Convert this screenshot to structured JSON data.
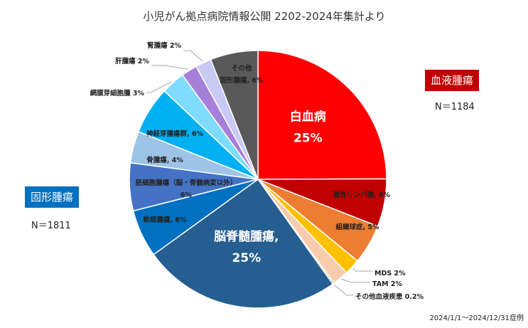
{
  "chart_data": {
    "type": "pie",
    "title": "小児がん拠点病院情報公開 2202-2024年集計より",
    "slices": [
      {
        "label": "白血病",
        "value": 25,
        "value_label": "25%",
        "group": "blood",
        "color": "#ff0000"
      },
      {
        "label": "悪性リンパ腫",
        "value": 6,
        "value_label": "6%",
        "group": "blood",
        "color": "#c00000"
      },
      {
        "label": "組織球症",
        "value": 5,
        "value_label": "5%",
        "group": "blood",
        "color": "#ed7d31"
      },
      {
        "label": "MDS",
        "value": 2,
        "value_label": "2%",
        "group": "blood",
        "color": "#ffc000"
      },
      {
        "label": "TAM",
        "value": 2,
        "value_label": "2%",
        "group": "blood",
        "color": "#f8cbad"
      },
      {
        "label": "その他血液疾患",
        "value": 0.2,
        "value_label": "0.2%",
        "group": "blood",
        "color": "#70ad47"
      },
      {
        "label": "脳脊髄腫瘍,",
        "value": 25,
        "value_label": "25%",
        "group": "solid",
        "color": "#255e91"
      },
      {
        "label": "軟部腫瘍,",
        "value": 6,
        "value_label": "6%",
        "group": "solid",
        "color": "#0070c0"
      },
      {
        "label": "胚細胞腫瘍（脳・脊髄病変以外）",
        "value": 6,
        "value_label": "6%",
        "group": "solid",
        "color": "#4472c4"
      },
      {
        "label": "骨腫瘍,",
        "value": 4,
        "value_label": "4%",
        "group": "solid",
        "color": "#9dc3e6"
      },
      {
        "label": "神経芽腫瘍群,",
        "value": 6,
        "value_label": "6%",
        "group": "solid",
        "color": "#00b0f0"
      },
      {
        "label": "網膜芽細胞腫",
        "value": 3,
        "value_label": "3%",
        "group": "solid",
        "color": "#7fdcff"
      },
      {
        "label": "肝腫瘍",
        "value": 2,
        "value_label": "2%",
        "group": "solid",
        "color": "#a67fd8"
      },
      {
        "label": "腎腫瘍",
        "value": 2,
        "value_label": "2%",
        "group": "solid",
        "color": "#c9c9f5"
      },
      {
        "label": "その他固形腫瘍,",
        "value": 6,
        "value_label": "6%",
        "group": "solid",
        "color": "#595959"
      }
    ],
    "groups": {
      "blood": {
        "label": "血液腫瘍",
        "n_text": "N＝1184",
        "color": "#c00000"
      },
      "solid": {
        "label": "固形腫瘍",
        "n_text": "N＝1811",
        "color": "#0070c0"
      }
    },
    "period": "2024/1/1～2024/12/31症例"
  }
}
